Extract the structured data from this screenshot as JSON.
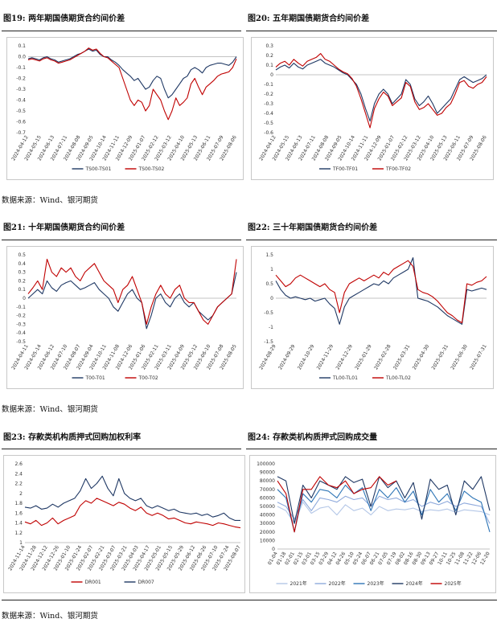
{
  "figures": [
    {
      "number": "图19:",
      "title": "两年期国债期货合约间价差"
    },
    {
      "number": "图20:",
      "title": "五年期国债期货合约间价差"
    },
    {
      "number": "图21:",
      "title": "十年期国债期货合约间价差"
    },
    {
      "number": "图22:",
      "title": "三十年期国债期货合约间价差"
    },
    {
      "number": "图23:",
      "title": "存款类机构质押式回购加权利率"
    },
    {
      "number": "图24:",
      "title": "存款类机构质押式回购成交量"
    }
  ],
  "source_text": "数据来源：Wind、银河期货",
  "chart_data": [
    {
      "id": "fig19",
      "type": "line",
      "x_ticks": [
        "2024-04-12",
        "2024-05-15",
        "2024-06-13",
        "2024-07-11",
        "2024-08-08",
        "2024-09-05",
        "2024-10-14",
        "2024-11-11",
        "2024-12-09",
        "2025-01-07",
        "2025-02-12",
        "2025-03-12",
        "2025-04-10",
        "2025-05-13",
        "2025-06-11",
        "2025-07-09",
        "2025-08-06"
      ],
      "ylim": [
        -0.7,
        0.1
      ],
      "y_ticks": [
        0.1,
        0.0,
        -0.1,
        -0.2,
        -0.3,
        -0.4,
        -0.5,
        -0.6,
        -0.7
      ],
      "y_tick_labels": [
        "0.1",
        "0.0",
        "-0.1",
        "-0.2",
        "-0.3",
        "-0.4",
        "-0.5",
        "-0.6",
        "-0.7"
      ],
      "series": [
        {
          "name": "TS00-TS01",
          "color": "#1f3864",
          "values": [
            -0.02,
            -0.01,
            -0.02,
            -0.03,
            -0.01,
            0.0,
            -0.02,
            -0.03,
            -0.05,
            -0.04,
            -0.03,
            -0.02,
            0.0,
            0.02,
            0.03,
            0.05,
            0.07,
            0.05,
            0.06,
            0.02,
            0.0,
            0.0,
            -0.03,
            -0.05,
            -0.08,
            -0.12,
            -0.15,
            -0.18,
            -0.22,
            -0.2,
            -0.25,
            -0.3,
            -0.28,
            -0.22,
            -0.18,
            -0.2,
            -0.3,
            -0.38,
            -0.35,
            -0.3,
            -0.25,
            -0.2,
            -0.18,
            -0.12,
            -0.1,
            -0.12,
            -0.15,
            -0.1,
            -0.08,
            -0.07,
            -0.06,
            -0.06,
            -0.07,
            -0.08,
            -0.05,
            0.0
          ]
        },
        {
          "name": "TS00-TS02",
          "color": "#c00000",
          "values": [
            -0.03,
            -0.02,
            -0.03,
            -0.04,
            -0.02,
            -0.01,
            -0.03,
            -0.04,
            -0.06,
            -0.05,
            -0.04,
            -0.03,
            -0.01,
            0.01,
            0.03,
            0.05,
            0.08,
            0.06,
            0.07,
            0.03,
            0.0,
            -0.01,
            -0.04,
            -0.07,
            -0.1,
            -0.2,
            -0.3,
            -0.4,
            -0.45,
            -0.4,
            -0.42,
            -0.5,
            -0.45,
            -0.3,
            -0.35,
            -0.4,
            -0.5,
            -0.58,
            -0.5,
            -0.38,
            -0.45,
            -0.42,
            -0.38,
            -0.25,
            -0.2,
            -0.28,
            -0.35,
            -0.28,
            -0.25,
            -0.22,
            -0.18,
            -0.16,
            -0.15,
            -0.14,
            -0.1,
            -0.02
          ]
        }
      ],
      "legend": "bottom"
    },
    {
      "id": "fig20",
      "type": "line",
      "x_ticks": [
        "2024-04-12",
        "2024-05-15",
        "2024-06-13",
        "2024-07-11",
        "2024-08-08",
        "2024-09-05",
        "2024-10-14",
        "2024-11-11",
        "2024-12-09",
        "2025-01-07",
        "2025-02-12",
        "2025-03-12",
        "2025-04-10",
        "2025-05-13",
        "2025-06-11",
        "2025-07-09",
        "2025-08-06"
      ],
      "ylim": [
        -0.6,
        0.3
      ],
      "y_ticks": [
        0.3,
        0.2,
        0.1,
        0.0,
        -0.1,
        -0.2,
        -0.3,
        -0.4,
        -0.5,
        -0.6
      ],
      "y_tick_labels": [
        "0.3",
        "0.2",
        "0.1",
        "0",
        "-0.1",
        "-0.2",
        "-0.3",
        "-0.4",
        "-0.5",
        "-0.6"
      ],
      "series": [
        {
          "name": "TF00-TF01",
          "color": "#1f3864",
          "values": [
            0.05,
            0.08,
            0.1,
            0.07,
            0.12,
            0.08,
            0.06,
            0.1,
            0.12,
            0.14,
            0.16,
            0.12,
            0.1,
            0.08,
            0.05,
            0.02,
            0.0,
            -0.05,
            -0.1,
            -0.2,
            -0.35,
            -0.48,
            -0.3,
            -0.2,
            -0.15,
            -0.2,
            -0.3,
            -0.25,
            -0.2,
            -0.05,
            -0.1,
            -0.25,
            -0.32,
            -0.28,
            -0.22,
            -0.3,
            -0.4,
            -0.35,
            -0.3,
            -0.25,
            -0.15,
            -0.05,
            -0.02,
            -0.05,
            -0.08,
            -0.06,
            -0.04,
            0.0
          ]
        },
        {
          "name": "TF00-TF02",
          "color": "#c00000",
          "values": [
            0.08,
            0.12,
            0.14,
            0.1,
            0.16,
            0.12,
            0.09,
            0.14,
            0.16,
            0.18,
            0.22,
            0.16,
            0.14,
            0.1,
            0.06,
            0.03,
            0.01,
            -0.04,
            -0.12,
            -0.25,
            -0.4,
            -0.55,
            -0.35,
            -0.25,
            -0.18,
            -0.22,
            -0.32,
            -0.28,
            -0.24,
            -0.08,
            -0.12,
            -0.28,
            -0.36,
            -0.34,
            -0.3,
            -0.36,
            -0.42,
            -0.4,
            -0.34,
            -0.3,
            -0.2,
            -0.08,
            -0.06,
            -0.12,
            -0.14,
            -0.1,
            -0.08,
            -0.02
          ]
        }
      ],
      "legend": "bottom"
    },
    {
      "id": "fig21",
      "type": "line",
      "x_ticks": [
        "2024-04-11",
        "2024-05-14",
        "2024-06-12",
        "2024-07-10",
        "2024-08-07",
        "2024-09-04",
        "2024-10-11",
        "2024-11-08",
        "2024-12-06",
        "2025-01-06",
        "2025-02-11",
        "2025-03-11",
        "2025-04-09",
        "2025-05-12",
        "2025-06-10",
        "2025-07-08",
        "2025-08-05"
      ],
      "ylim": [
        -0.5,
        0.5
      ],
      "y_ticks": [
        0.5,
        0.4,
        0.3,
        0.2,
        0.1,
        0.0,
        -0.1,
        -0.2,
        -0.3,
        -0.4,
        -0.5
      ],
      "y_tick_labels": [
        "0.5",
        "0.4",
        "0.3",
        "0.2",
        "0.1",
        "0",
        "-0.1",
        "-0.2",
        "-0.3",
        "-0.4",
        "-0.5"
      ],
      "series": [
        {
          "name": "T00-T01",
          "color": "#1f3864",
          "values": [
            0.0,
            0.05,
            0.1,
            0.05,
            0.2,
            0.12,
            0.08,
            0.15,
            0.18,
            0.2,
            0.15,
            0.1,
            0.12,
            0.15,
            0.18,
            0.1,
            0.05,
            0.0,
            -0.1,
            -0.15,
            -0.05,
            0.05,
            0.1,
            0.0,
            -0.05,
            -0.35,
            -0.2,
            0.0,
            0.05,
            -0.05,
            -0.1,
            0.0,
            0.05,
            -0.05,
            -0.1,
            -0.05,
            -0.15,
            -0.2,
            -0.25,
            -0.2,
            -0.1,
            -0.05,
            0.0,
            0.05,
            0.3
          ]
        },
        {
          "name": "T00-T02",
          "color": "#c00000",
          "values": [
            0.05,
            0.12,
            0.2,
            0.1,
            0.45,
            0.3,
            0.25,
            0.35,
            0.3,
            0.35,
            0.25,
            0.2,
            0.3,
            0.35,
            0.4,
            0.3,
            0.2,
            0.15,
            0.1,
            -0.05,
            0.1,
            0.15,
            0.25,
            0.1,
            -0.05,
            -0.3,
            -0.1,
            0.05,
            0.15,
            0.05,
            0.0,
            0.1,
            0.15,
            0.0,
            -0.05,
            -0.05,
            -0.15,
            -0.25,
            -0.3,
            -0.2,
            -0.1,
            -0.05,
            0.0,
            0.05,
            0.45
          ]
        }
      ],
      "legend": "bottom"
    },
    {
      "id": "fig22",
      "type": "line",
      "x_ticks": [
        "2024-08-29",
        "2024-09-29",
        "2024-10-29",
        "2024-11-29",
        "2024-12-29",
        "2025-01-29",
        "2025-02-28",
        "2025-03-31",
        "2025-04-30",
        "2025-05-31",
        "2025-06-30",
        "2025-07-31"
      ],
      "ylim": [
        -1.5,
        1.5
      ],
      "y_ticks": [
        1.5,
        1.0,
        0.5,
        0.0,
        -0.5,
        -1.0,
        -1.5
      ],
      "y_tick_labels": [
        "1.5",
        "1",
        "0.5",
        "0",
        "-0.5",
        "-1",
        "-1.5"
      ],
      "series": [
        {
          "name": "TL00-TL01",
          "color": "#1f3864",
          "values": [
            0.6,
            0.3,
            0.1,
            0.0,
            0.05,
            0.0,
            -0.05,
            0.0,
            -0.1,
            -0.05,
            0.0,
            -0.2,
            -0.35,
            -0.9,
            -0.3,
            0.0,
            0.1,
            0.2,
            0.3,
            0.4,
            0.5,
            0.45,
            0.6,
            0.5,
            0.7,
            0.8,
            0.9,
            1.0,
            1.4,
            0.0,
            -0.05,
            -0.1,
            -0.2,
            -0.3,
            -0.45,
            -0.6,
            -0.7,
            -0.8,
            -0.9,
            0.3,
            0.25,
            0.3,
            0.35,
            0.3
          ]
        },
        {
          "name": "TL00-TL02",
          "color": "#c00000",
          "values": [
            0.8,
            0.6,
            0.4,
            0.5,
            0.7,
            0.8,
            0.7,
            0.6,
            0.5,
            0.4,
            0.5,
            0.3,
            0.2,
            -0.5,
            0.2,
            0.5,
            0.6,
            0.7,
            0.6,
            0.7,
            0.8,
            0.7,
            0.9,
            0.8,
            1.0,
            1.1,
            1.2,
            1.3,
            1.1,
            0.3,
            0.2,
            0.15,
            0.05,
            -0.1,
            -0.3,
            -0.5,
            -0.6,
            -0.75,
            -0.85,
            0.5,
            0.45,
            0.55,
            0.6,
            0.75
          ]
        }
      ],
      "legend": "bottom"
    },
    {
      "id": "fig23",
      "type": "line",
      "x_ticks": [
        "2024-11-14",
        "2024-11-28",
        "2024-12-12",
        "2024-12-26",
        "2025-01-10",
        "2025-01-24",
        "2025-02-07",
        "2025-02-21",
        "2025-03-07",
        "2025-03-21",
        "2025-04-03",
        "2025-04-17",
        "2025-05-01",
        "2025-05-15",
        "2025-05-29",
        "2025-06-12",
        "2025-06-26",
        "2025-07-10",
        "2025-07-24",
        "2025-08-07"
      ],
      "ylim": [
        1.0,
        2.6
      ],
      "y_ticks": [
        2.6,
        2.4,
        2.2,
        2.0,
        1.8,
        1.6,
        1.4,
        1.2,
        1.0
      ],
      "y_tick_labels": [
        "2.6",
        "2.4",
        "2.2",
        "2",
        "1.8",
        "1.6",
        "1.4",
        "1.2",
        "1"
      ],
      "series": [
        {
          "name": "DR001",
          "color": "#c00000",
          "values": [
            1.42,
            1.38,
            1.45,
            1.35,
            1.4,
            1.5,
            1.38,
            1.45,
            1.5,
            1.55,
            1.75,
            1.85,
            1.8,
            1.9,
            1.85,
            1.8,
            1.75,
            1.82,
            1.78,
            1.7,
            1.65,
            1.72,
            1.6,
            1.55,
            1.6,
            1.55,
            1.48,
            1.5,
            1.45,
            1.4,
            1.38,
            1.42,
            1.4,
            1.38,
            1.35,
            1.4,
            1.38,
            1.35,
            1.32,
            1.3
          ]
        },
        {
          "name": "DR007",
          "color": "#1f3864",
          "values": [
            1.72,
            1.7,
            1.75,
            1.68,
            1.7,
            1.78,
            1.72,
            1.8,
            1.85,
            1.9,
            2.05,
            2.3,
            2.1,
            2.2,
            2.35,
            2.1,
            1.95,
            2.3,
            2.0,
            1.9,
            1.85,
            1.9,
            1.75,
            1.7,
            1.75,
            1.7,
            1.65,
            1.68,
            1.62,
            1.6,
            1.58,
            1.6,
            1.55,
            1.58,
            1.52,
            1.55,
            1.6,
            1.5,
            1.45,
            1.45
          ]
        }
      ],
      "legend": "bottom"
    },
    {
      "id": "fig24",
      "type": "line",
      "x_ticks": [
        "01-04",
        "01-18",
        "02-01",
        "02-15",
        "03-01",
        "03-15",
        "03-29",
        "04-12",
        "04-26",
        "05-10",
        "05-24",
        "06-07",
        "06-21",
        "07-05",
        "07-19",
        "08-02",
        "08-16",
        "08-30",
        "09-13",
        "09-27",
        "10-11",
        "10-25",
        "11-08",
        "11-22",
        "12-06",
        "12-20"
      ],
      "x_tick_labels": [
        "01-04",
        "01-18",
        "02-01",
        "02-15",
        "03-01",
        "03-15",
        "03-29",
        "04-12",
        "04-26",
        "05-10",
        "05-24",
        "06-07",
        "06-21",
        "07-05",
        "07-19",
        "08-02",
        "08-16",
        "08-30",
        "09-13",
        "09-27",
        "10-11",
        "10-25",
        "11-08",
        "11-22",
        "12-06",
        "12-20"
      ],
      "ylim": [
        0,
        100000
      ],
      "y_ticks": [
        100000,
        90000,
        80000,
        70000,
        60000,
        50000,
        40000,
        30000,
        20000,
        10000,
        0
      ],
      "y_tick_labels": [
        "100000",
        "90000",
        "80000",
        "70000",
        "60000",
        "50000",
        "40000",
        "30000",
        "20000",
        "10000",
        "0"
      ],
      "series": [
        {
          "name": "2021年",
          "color": "#b4c7e7",
          "values": [
            50000,
            45000,
            30000,
            55000,
            42000,
            48000,
            50000,
            40000,
            52000,
            45000,
            48000,
            40000,
            50000,
            45000,
            47000,
            46000,
            48000,
            44000,
            46000,
            45000,
            47000,
            43000,
            46000,
            45000,
            44000,
            40000
          ]
        },
        {
          "name": "2022年",
          "color": "#8faadc",
          "values": [
            55000,
            50000,
            35000,
            58000,
            45000,
            60000,
            58000,
            55000,
            62000,
            58000,
            60000,
            50000,
            62000,
            58000,
            60000,
            55000,
            58000,
            50000,
            55000,
            52000,
            56000,
            50000,
            54000,
            52000,
            50000,
            30000
          ]
        },
        {
          "name": "2023年",
          "color": "#2e75b6",
          "values": [
            70000,
            60000,
            20000,
            65000,
            55000,
            70000,
            68000,
            60000,
            75000,
            65000,
            72000,
            45000,
            70000,
            60000,
            72000,
            55000,
            68000,
            40000,
            70000,
            55000,
            65000,
            45000,
            68000,
            60000,
            55000,
            20000
          ]
        },
        {
          "name": "2024年",
          "color": "#1f3864",
          "values": [
            85000,
            80000,
            30000,
            75000,
            60000,
            80000,
            75000,
            70000,
            85000,
            78000,
            82000,
            50000,
            85000,
            72000,
            80000,
            60000,
            78000,
            35000,
            82000,
            70000,
            75000,
            40000,
            80000,
            70000,
            85000,
            45000
          ]
        },
        {
          "name": "2025年",
          "color": "#c00000",
          "values": [
            80000,
            65000,
            20000,
            70000,
            70000,
            85000,
            75000,
            72000,
            80000,
            65000,
            70000,
            72000,
            85000,
            75000,
            80000
          ]
        }
      ],
      "legend": "bottom"
    }
  ]
}
